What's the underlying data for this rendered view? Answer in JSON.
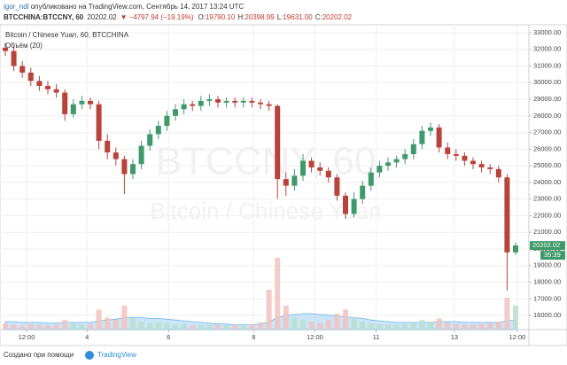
{
  "header": {
    "author": "igor_ndl",
    "published": " опубликовано на TradingView.com, Сентябрь 14, 2017 13:24 UTC",
    "symbol": "BTCCHINA:BTCCNY, 60",
    "last": "20202.02",
    "arrow": "▼",
    "change": "−4797.94 (−19.19%)",
    "ohlc": [
      {
        "label": "O:",
        "value": "19790.10"
      },
      {
        "label": "H:",
        "value": "20398.99"
      },
      {
        "label": "L:",
        "value": "19631.00"
      },
      {
        "label": "C:",
        "value": "20202.02"
      }
    ],
    "countdown": "35:39"
  },
  "footer": {
    "made_with": "Создано при помощи",
    "brand": "TradingView"
  },
  "chart_data": {
    "type": "candlestick",
    "title": "Bitcoin / Chinese Yuan, 60, BTCCHINA",
    "indicator": "Объём (20)",
    "watermark": [
      "BTCCNY, 60",
      "Bitcoin / Chinese Yuan"
    ],
    "up_color": "#3f9a6a",
    "down_color": "#b8433a",
    "volume_up_color": "#b9dfcb",
    "volume_down_color": "#f2c2bc",
    "volume_ma_color": "#9fd0f2",
    "grid": true,
    "opens": [
      32100,
      31900,
      31000,
      30600,
      30100,
      29800,
      29600,
      29400,
      28100,
      28700,
      28900,
      28700,
      26500,
      25800,
      25400,
      24500,
      25100,
      26200,
      26900,
      27400,
      28000,
      28400,
      28700,
      28600,
      28900,
      29000,
      28800,
      28900,
      28800,
      28900,
      28800,
      28700,
      28600,
      24200,
      23800,
      24400,
      25300,
      24900,
      24700,
      24300,
      23200,
      22100,
      23000,
      23800,
      24600,
      25000,
      25200,
      25400,
      25700,
      26300,
      27100,
      27300,
      26100,
      25700,
      25600,
      25300,
      25100,
      24900,
      24800,
      24300,
      19790.1
    ],
    "highs": [
      32400,
      32200,
      31300,
      30900,
      30400,
      30100,
      29900,
      29600,
      29000,
      29200,
      29100,
      28900,
      26900,
      26100,
      25600,
      25400,
      26500,
      27200,
      27700,
      28300,
      28700,
      29000,
      28900,
      29200,
      29300,
      29200,
      29100,
      29100,
      29100,
      29100,
      29000,
      28900,
      28700,
      24600,
      24800,
      25700,
      25500,
      25200,
      24900,
      24500,
      23400,
      23400,
      24100,
      24900,
      25300,
      25500,
      25600,
      26000,
      26600,
      27400,
      27600,
      27500,
      26400,
      26000,
      25800,
      25500,
      25300,
      25100,
      25000,
      24500,
      20398.99
    ],
    "lows": [
      31600,
      30700,
      30300,
      29800,
      29500,
      29300,
      29100,
      27700,
      27900,
      28400,
      28400,
      26000,
      25400,
      25000,
      23300,
      24200,
      24800,
      25900,
      26600,
      27100,
      27700,
      28100,
      28300,
      28300,
      28600,
      28500,
      28500,
      28500,
      28500,
      28500,
      28400,
      28300,
      23000,
      23200,
      23500,
      24100,
      24600,
      24400,
      24000,
      22900,
      21800,
      21900,
      22700,
      23500,
      24300,
      24700,
      24900,
      25100,
      25400,
      26000,
      26800,
      25800,
      25400,
      25300,
      25000,
      24800,
      24600,
      24500,
      24000,
      17500,
      19631
    ],
    "closes": [
      31900,
      31000,
      30600,
      30100,
      29800,
      29600,
      29400,
      28100,
      28700,
      28900,
      28700,
      26500,
      25800,
      25400,
      24500,
      25100,
      26200,
      26900,
      27400,
      28000,
      28400,
      28700,
      28600,
      28900,
      29000,
      28800,
      28900,
      28800,
      28900,
      28800,
      28700,
      28600,
      24200,
      23800,
      24400,
      25300,
      24900,
      24700,
      24300,
      23200,
      22100,
      23000,
      23800,
      24600,
      25000,
      25200,
      25400,
      25700,
      26300,
      27100,
      27300,
      26100,
      25700,
      25600,
      25300,
      25100,
      24900,
      24800,
      24300,
      19790.1,
      20202.02
    ],
    "volume": [
      8,
      6,
      5,
      7,
      6,
      5,
      6,
      12,
      8,
      6,
      7,
      25,
      15,
      12,
      30,
      14,
      10,
      8,
      9,
      8,
      6,
      7,
      5,
      6,
      5,
      6,
      5,
      6,
      5,
      7,
      9,
      50,
      90,
      30,
      15,
      12,
      10,
      8,
      12,
      20,
      25,
      15,
      10,
      8,
      7,
      6,
      6,
      7,
      9,
      12,
      10,
      14,
      9,
      7,
      6,
      6,
      7,
      8,
      10,
      40,
      30
    ],
    "volume_ma": [
      10,
      10,
      9,
      9,
      9,
      8,
      8,
      9,
      9,
      9,
      9,
      11,
      12,
      13,
      15,
      15,
      15,
      14,
      14,
      13,
      12,
      11,
      10,
      9,
      8,
      7,
      7,
      6,
      6,
      6,
      7,
      10,
      15,
      18,
      19,
      20,
      20,
      19,
      18,
      17,
      16,
      15,
      14,
      12,
      11,
      10,
      9,
      9,
      9,
      9,
      9,
      10,
      10,
      10,
      9,
      9,
      9,
      9,
      9,
      11,
      12
    ],
    "volume_lim": [
      0,
      100
    ],
    "ylim": [
      15150,
      33370
    ],
    "yticks": [
      {
        "value": 16000,
        "label": "16000.00"
      },
      {
        "value": 17000,
        "label": "17000.00"
      },
      {
        "value": 18000,
        "label": "18000.00"
      },
      {
        "value": 19000,
        "label": "19000.00"
      },
      {
        "value": 20000,
        "label": "20000.00"
      },
      {
        "value": 21000,
        "label": "21000.00"
      },
      {
        "value": 22000,
        "label": "22000.00"
      },
      {
        "value": 23000,
        "label": "23000.00"
      },
      {
        "value": 24000,
        "label": "24000.00"
      },
      {
        "value": 25000,
        "label": "25000.00"
      },
      {
        "value": 26000,
        "label": "26000.00"
      },
      {
        "value": 27000,
        "label": "27000.00"
      },
      {
        "value": 28000,
        "label": "28000.00"
      },
      {
        "value": 29000,
        "label": "29000.00"
      },
      {
        "value": 30000,
        "label": "30000.00"
      },
      {
        "value": 31000,
        "label": "31000.00"
      },
      {
        "value": 32000,
        "label": "32000.00"
      },
      {
        "value": 33000,
        "label": "33000.00"
      }
    ],
    "xticks": [
      {
        "value": 2.5,
        "label": "12:00"
      },
      {
        "value": 9.6,
        "label": "4"
      },
      {
        "value": 19.2,
        "label": "6"
      },
      {
        "value": 29.2,
        "label": "8"
      },
      {
        "value": 36.4,
        "label": "12:00"
      },
      {
        "value": 43.6,
        "label": "11"
      },
      {
        "value": 52.8,
        "label": "13"
      },
      {
        "value": 60.2,
        "label": "12:00"
      }
    ]
  }
}
